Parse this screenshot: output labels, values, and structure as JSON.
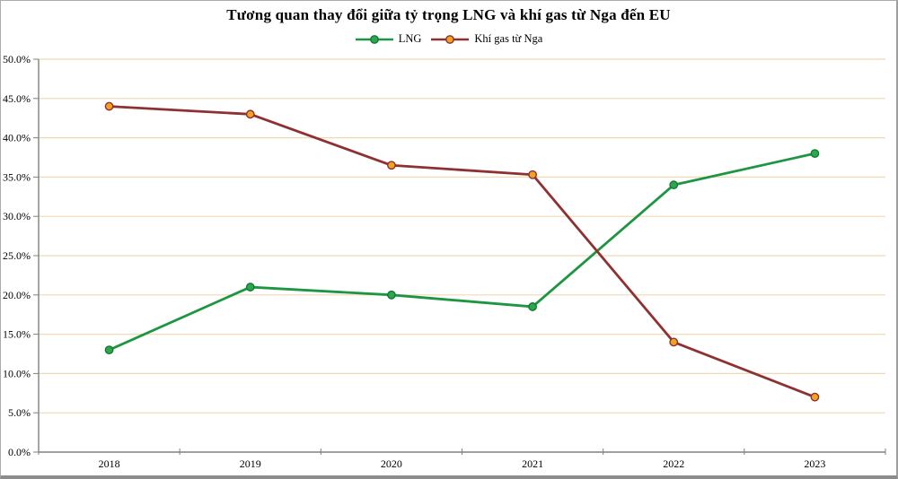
{
  "chart_data": {
    "type": "line",
    "title": "Tương quan thay đổi giữa tỷ trọng LNG và khí gas từ Nga đến EU",
    "categories": [
      "2018",
      "2019",
      "2020",
      "2021",
      "2022",
      "2023"
    ],
    "series": [
      {
        "name": "LNG",
        "values": [
          13,
          21,
          20,
          18.5,
          34,
          38
        ],
        "color": "#1e9641",
        "marker_fill": "#2fa64d",
        "marker_edge": "#0e7a32"
      },
      {
        "name": "Khí gas từ Nga",
        "values": [
          44,
          43,
          36.5,
          35.3,
          14,
          7
        ],
        "color": "#8e3132",
        "marker_fill": "#efa320",
        "marker_edge": "#8e3132"
      }
    ],
    "ylim": [
      0,
      50
    ],
    "y_tick_step": 5,
    "y_tick_labels": [
      "0.0%",
      "5.0%",
      "10.0%",
      "15.0%",
      "20.0%",
      "25.0%",
      "30.0%",
      "35.0%",
      "40.0%",
      "45.0%",
      "50.0%"
    ],
    "grid": true,
    "legend_position": "top-center",
    "gridline_color": "#f0d9b5",
    "axis_color": "#808080",
    "text_color": "#000000"
  }
}
